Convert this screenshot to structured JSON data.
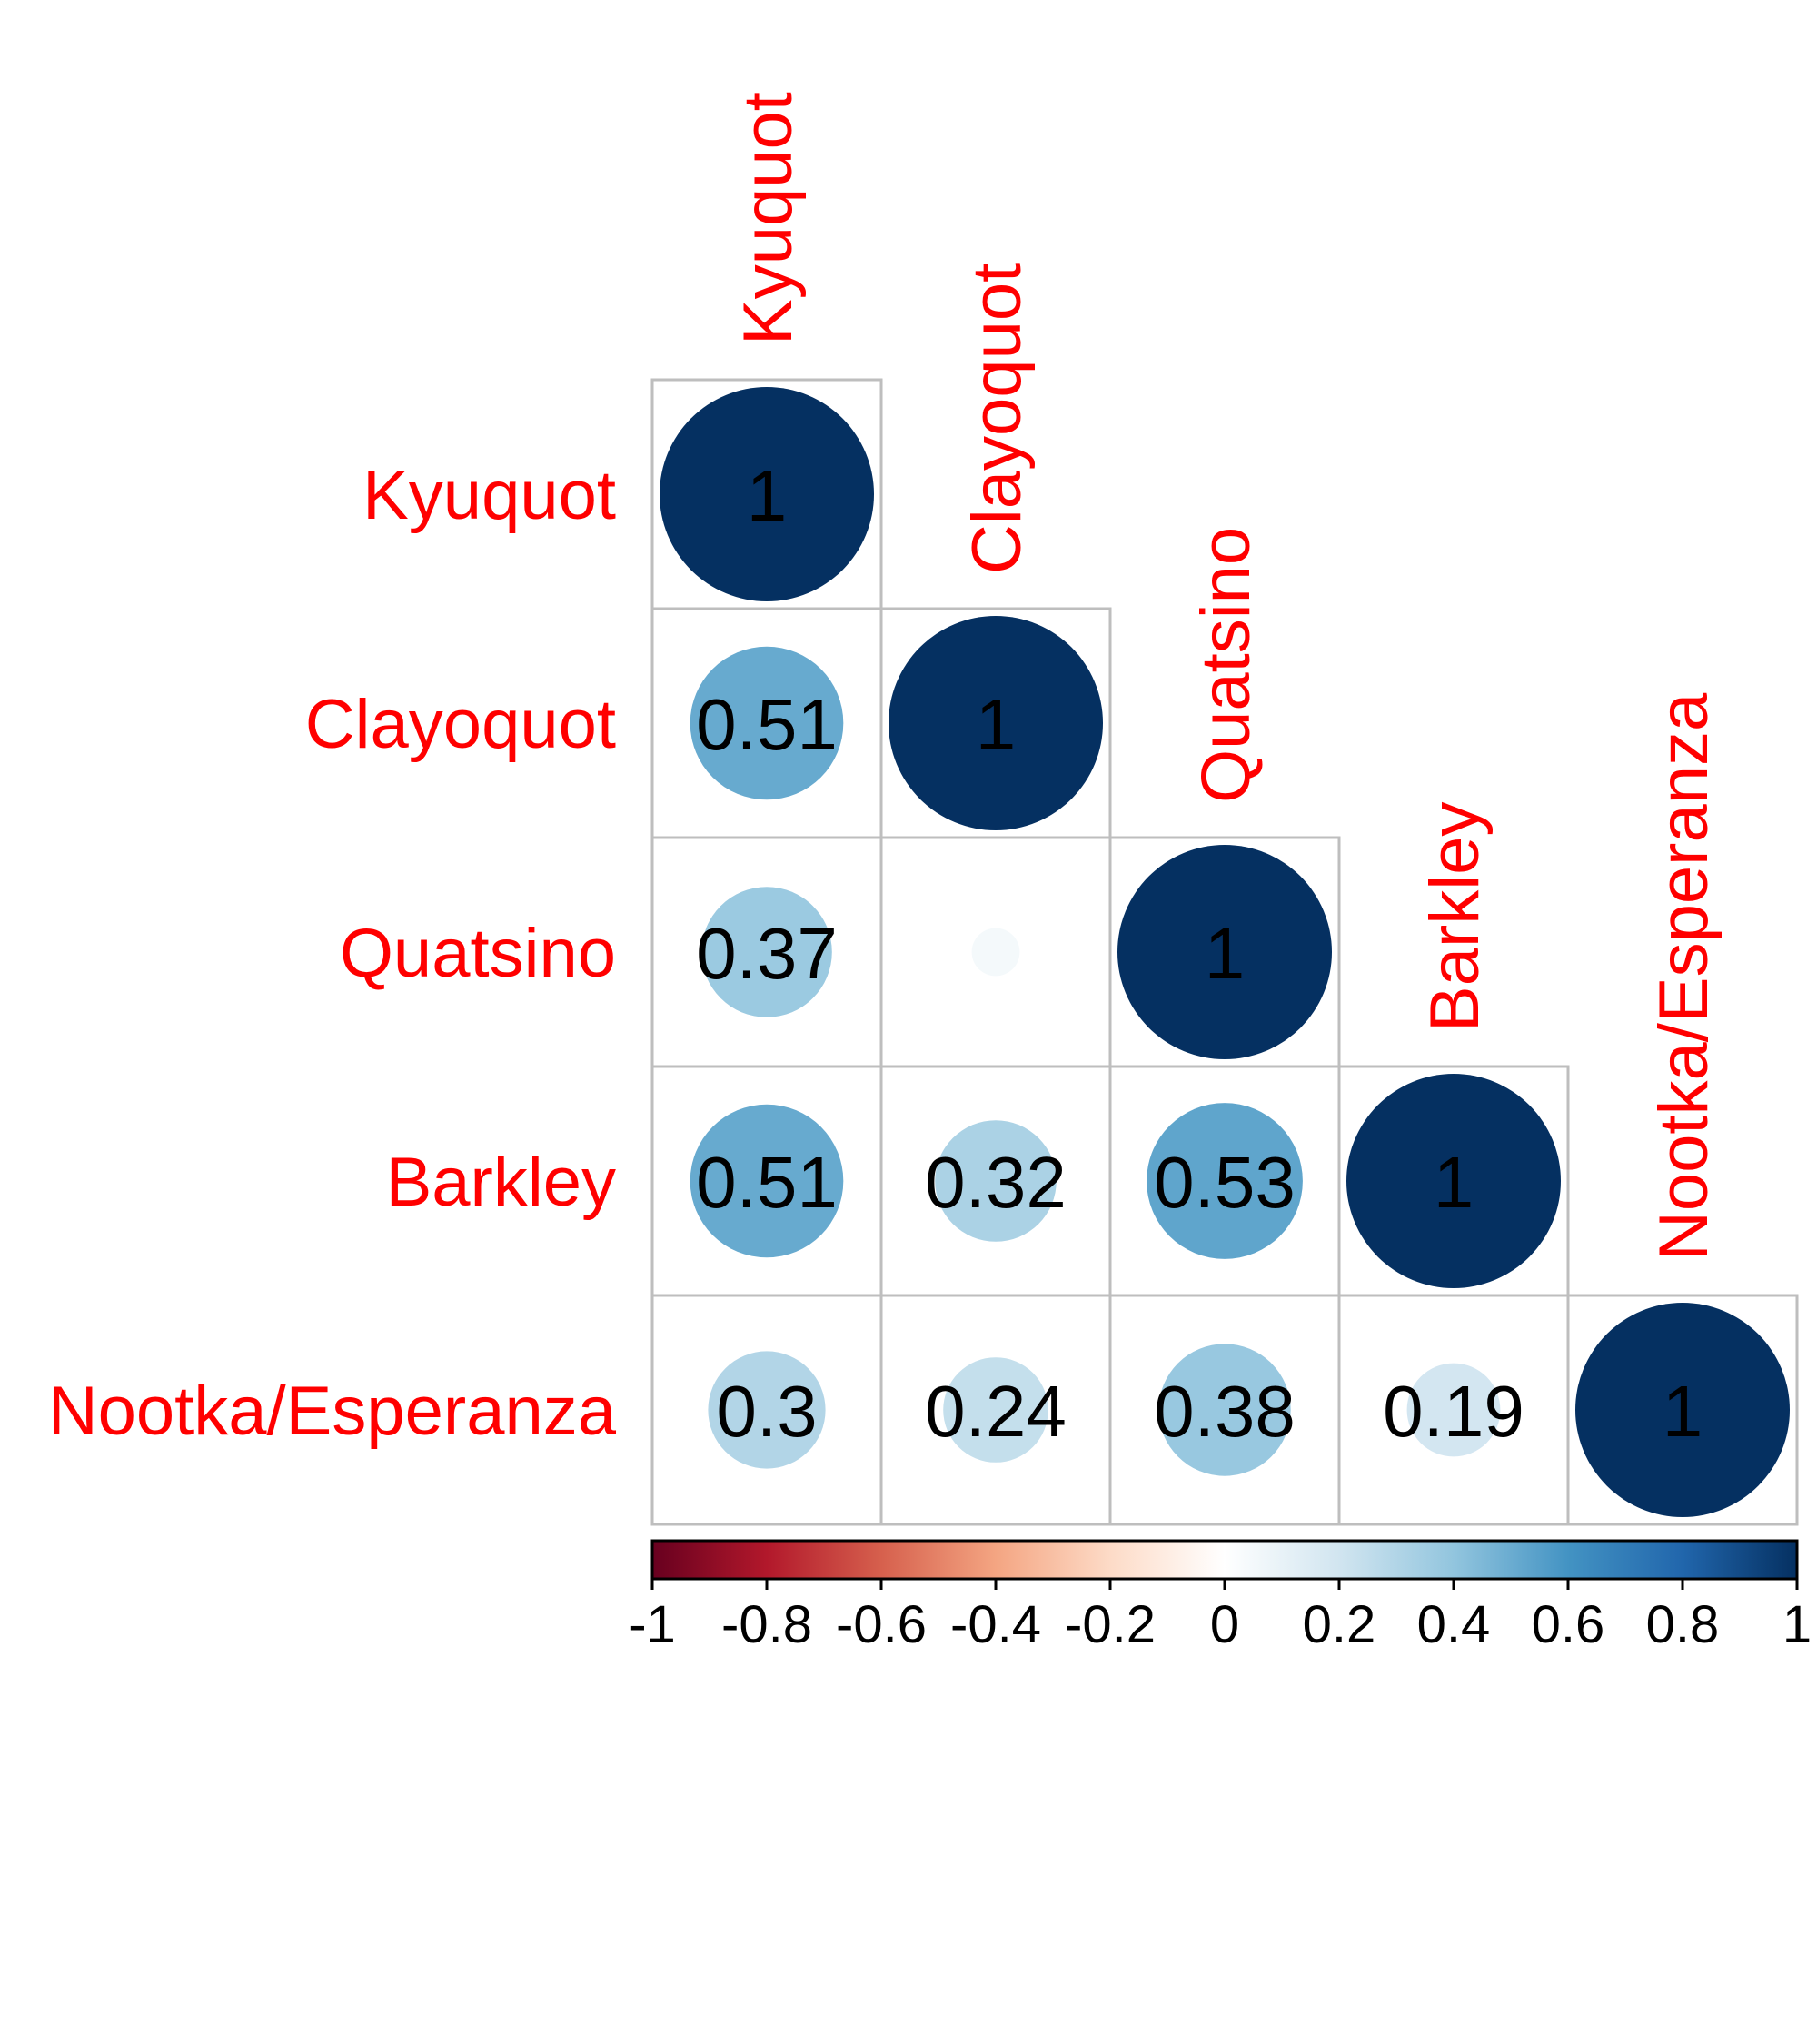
{
  "chart_data": {
    "type": "heatmap",
    "title": "",
    "variables": [
      "Kyuquot",
      "Clayoquot",
      "Quatsino",
      "Barkley",
      "Nootka/Esperanza"
    ],
    "matrix_lower": [
      [
        1
      ],
      [
        0.51,
        1
      ],
      [
        0.37,
        0.05,
        1
      ],
      [
        0.51,
        0.32,
        0.53,
        1
      ],
      [
        0.3,
        0.24,
        0.38,
        0.19,
        1
      ]
    ],
    "cell_labels": [
      [
        "1"
      ],
      [
        "0.51",
        "1"
      ],
      [
        "0.37",
        "",
        "1"
      ],
      [
        "0.51",
        "0.32",
        "0.53",
        "1"
      ],
      [
        "0.3",
        "0.24",
        "0.38",
        "0.19",
        "1"
      ]
    ],
    "colorbar": {
      "range": [
        -1,
        1
      ],
      "ticks": [
        "-1",
        "-0.8",
        "-0.6",
        "-0.4",
        "-0.2",
        "0",
        "0.2",
        "0.4",
        "0.6",
        "0.8",
        "1"
      ],
      "colors": [
        "#67001f",
        "#b2182b",
        "#d6604d",
        "#f4a582",
        "#fddbc7",
        "#ffffff",
        "#d1e5f0",
        "#92c5de",
        "#4393c3",
        "#2166ac",
        "#053061"
      ]
    },
    "label_color": "#ff0000"
  }
}
